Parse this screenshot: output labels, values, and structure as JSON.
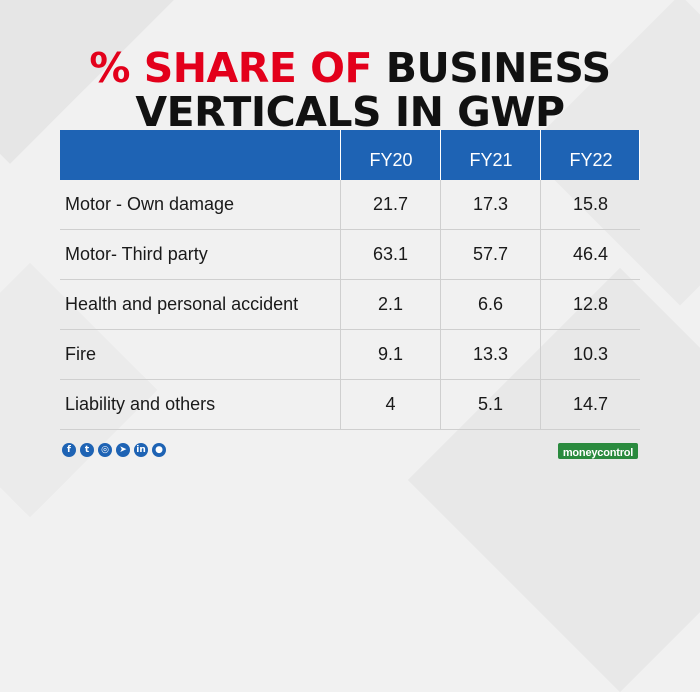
{
  "title": {
    "accent": "% SHARE OF",
    "rest": "BUSINESS",
    "line2": "VERTICALS IN GWP"
  },
  "chart_data": {
    "type": "table",
    "columns": [
      "",
      "FY20",
      "FY21",
      "FY22"
    ],
    "rows": [
      {
        "label": "Motor - Own damage",
        "values": [
          "21.7",
          "17.3",
          "15.8"
        ]
      },
      {
        "label": "Motor- Third party",
        "values": [
          "63.1",
          "57.7",
          "46.4"
        ]
      },
      {
        "label": "Health and personal accident",
        "values": [
          "2.1",
          "6.6",
          "12.8"
        ]
      },
      {
        "label": "Fire",
        "values": [
          "9.1",
          "13.3",
          "10.3"
        ]
      },
      {
        "label": "Liability and others",
        "values": [
          "4",
          "5.1",
          "14.7"
        ]
      }
    ]
  },
  "colors": {
    "accent": "#e3001b",
    "header": "#1e63b4",
    "brand": "#2a8a3e"
  },
  "social_icons": [
    {
      "name": "facebook-icon",
      "glyph": "f"
    },
    {
      "name": "twitter-icon",
      "glyph": "t"
    },
    {
      "name": "instagram-icon",
      "glyph": "◎"
    },
    {
      "name": "telegram-icon",
      "glyph": "➤"
    },
    {
      "name": "linkedin-icon",
      "glyph": "in"
    },
    {
      "name": "koo-icon",
      "glyph": "●"
    }
  ],
  "brand": "moneycontrol"
}
